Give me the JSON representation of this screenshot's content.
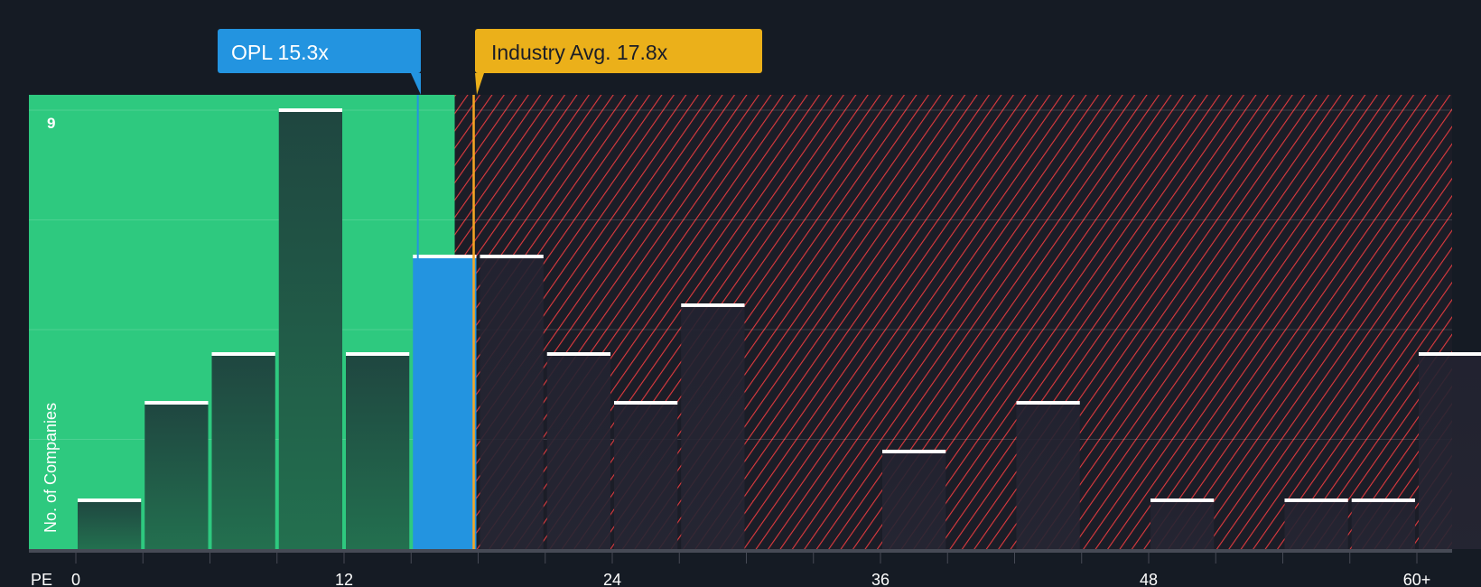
{
  "chart_data": {
    "type": "bar",
    "title": "",
    "xlabel": "PE",
    "ylabel": "No. of Companies",
    "bin_width": 3,
    "bins_start": [
      0,
      3,
      6,
      9,
      12,
      15,
      18,
      21,
      24,
      27,
      30,
      33,
      36,
      39,
      42,
      45,
      48,
      51,
      54,
      57,
      60
    ],
    "values": [
      1,
      3,
      4,
      9,
      4,
      6,
      6,
      4,
      3,
      5,
      0,
      0,
      2,
      0,
      3,
      0,
      1,
      0,
      1,
      1,
      4
    ],
    "highlight_bin_start": 15,
    "x_ticks": [
      "0",
      "12",
      "24",
      "36",
      "48",
      "60+"
    ],
    "x_tick_values": [
      0,
      12,
      24,
      36,
      48,
      60
    ],
    "y_tick_label": "9",
    "ylim": [
      0,
      9
    ],
    "grid_step": 2.25,
    "company": {
      "label": "OPL 15.3x",
      "value": 15.3
    },
    "industry": {
      "label": "Industry Avg. 17.8x",
      "value": 17.8
    },
    "colors": {
      "background": "#151b24",
      "fair_zone": "#2ec97f",
      "bar_fair": "#21483f",
      "bar_over": "#222431",
      "highlight": "#2394e0",
      "industry": "#ebb01a",
      "hatch": "#e03a3e",
      "cap": "#ffffff"
    }
  }
}
